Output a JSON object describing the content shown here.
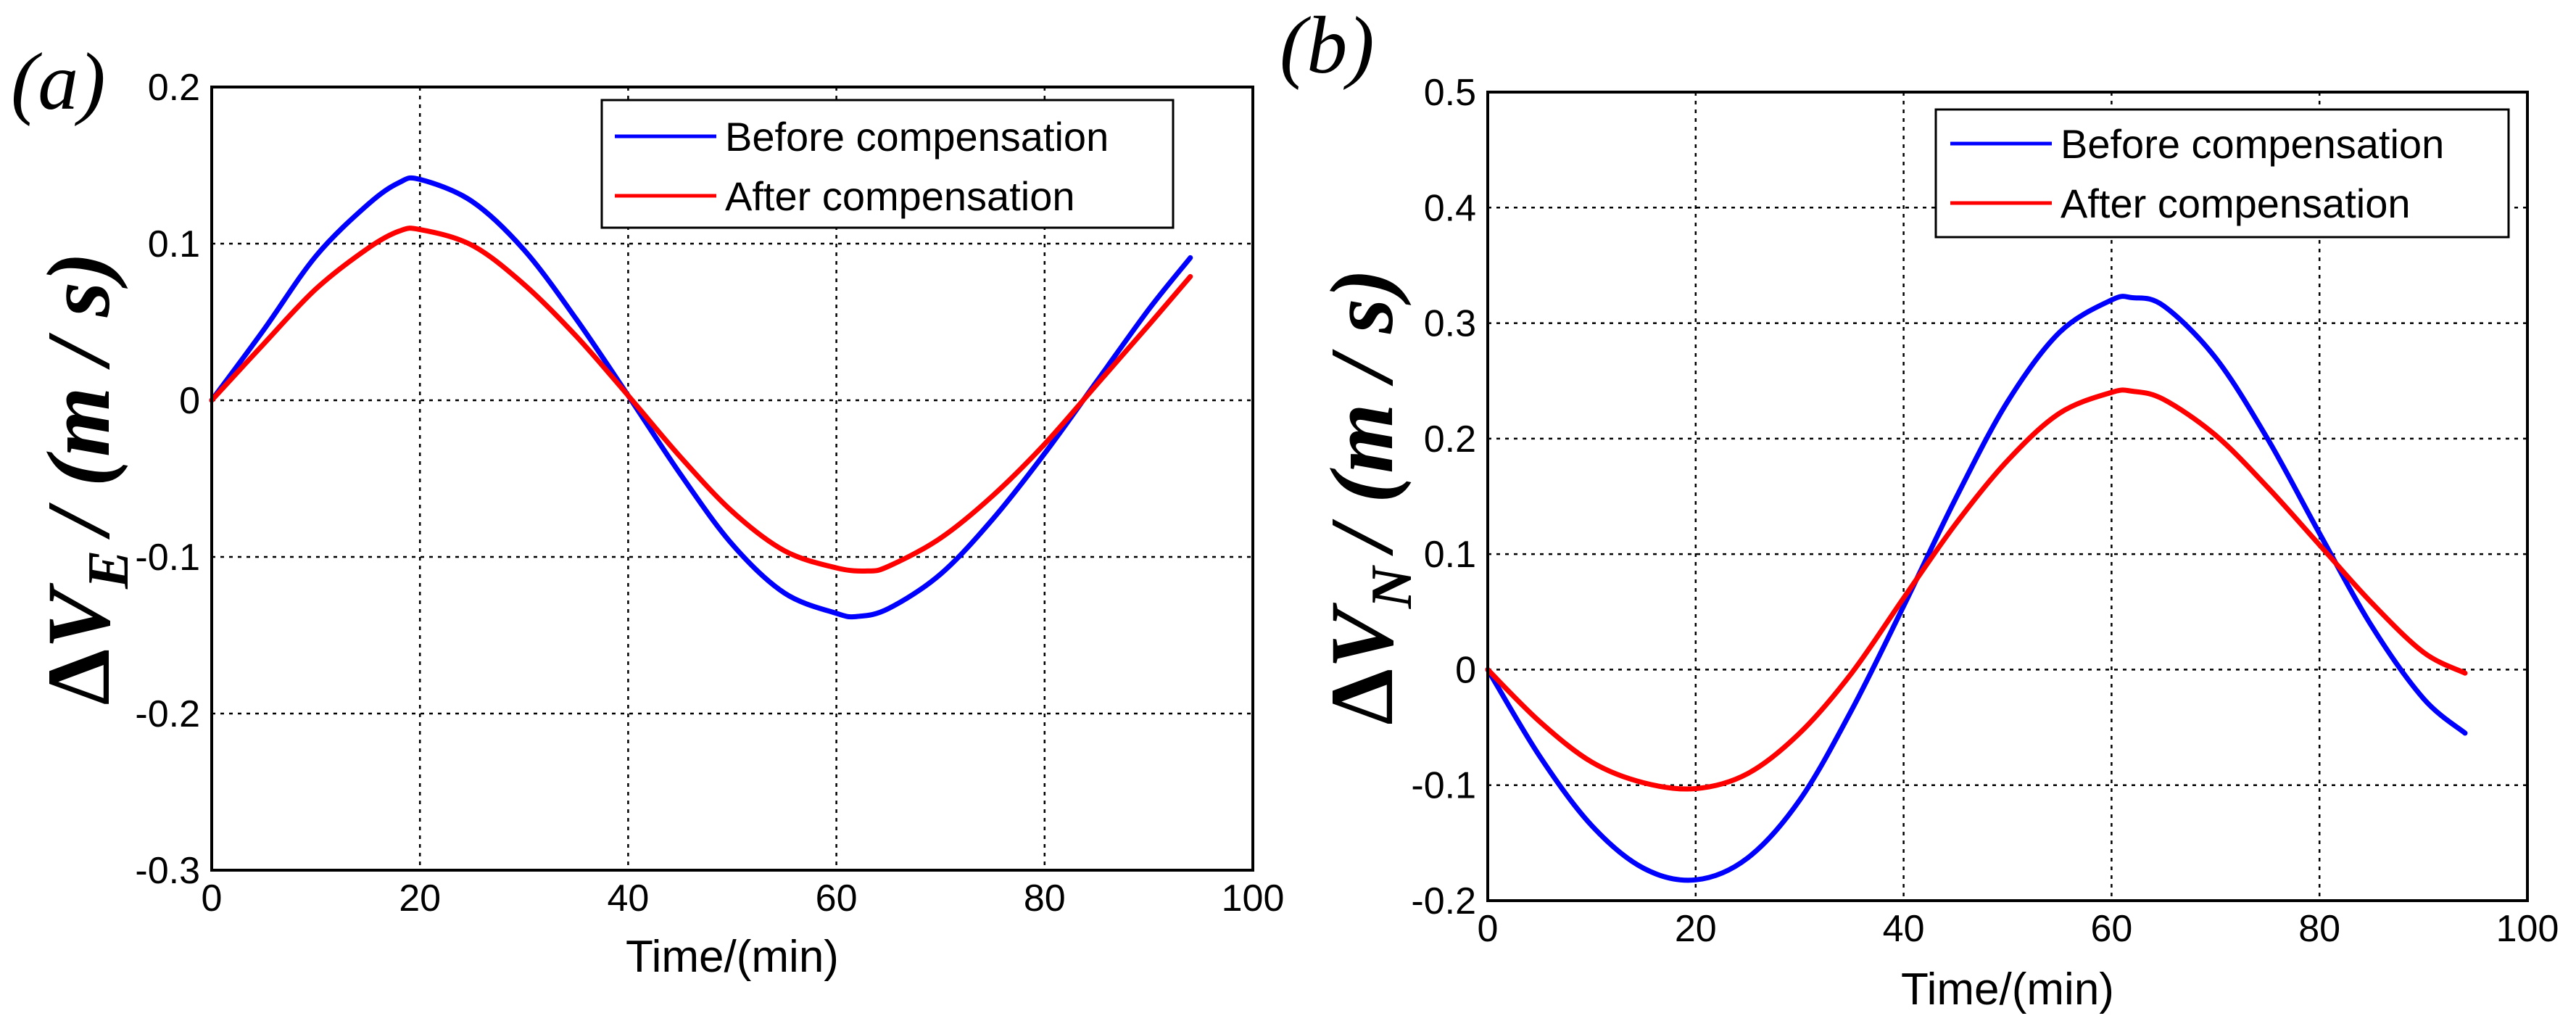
{
  "chart_data": [
    {
      "id": "a",
      "type": "line",
      "panel_label": "(a)",
      "xlabel": "Time/(min)",
      "ylabel": {
        "delta": "Δ",
        "var": "V",
        "sub": "E",
        "unit": "/ (m / s)"
      },
      "xlim": [
        0,
        100
      ],
      "ylim": [
        -0.3,
        0.2
      ],
      "xticks": [
        0,
        20,
        40,
        60,
        80,
        100
      ],
      "yticks": [
        -0.3,
        -0.2,
        -0.1,
        0,
        0.1,
        0.2
      ],
      "xtick_labels": [
        "0",
        "20",
        "40",
        "60",
        "80",
        "100"
      ],
      "ytick_labels": [
        "-0.3",
        "-0.2",
        "-0.1",
        "0",
        "0.1",
        "0.2"
      ],
      "grid": true,
      "legend_position": "top-right",
      "series": [
        {
          "name": "Before compensation",
          "color": "#0000ff",
          "x": [
            0,
            5,
            10,
            15,
            18,
            20,
            25,
            30,
            35,
            40,
            45,
            50,
            55,
            60,
            62,
            65,
            70,
            75,
            80,
            85,
            90,
            94
          ],
          "y": [
            0,
            0.045,
            0.092,
            0.125,
            0.139,
            0.141,
            0.127,
            0.096,
            0.052,
            0.003,
            -0.047,
            -0.092,
            -0.123,
            -0.136,
            -0.138,
            -0.133,
            -0.111,
            -0.076,
            -0.034,
            0.012,
            0.058,
            0.091
          ]
        },
        {
          "name": "After compensation",
          "color": "#ff0000",
          "x": [
            0,
            5,
            10,
            15,
            18,
            20,
            25,
            30,
            35,
            40,
            45,
            50,
            55,
            60,
            63,
            65,
            70,
            75,
            80,
            85,
            90,
            94
          ],
          "y": [
            0,
            0.036,
            0.071,
            0.097,
            0.108,
            0.109,
            0.099,
            0.074,
            0.041,
            0.003,
            -0.036,
            -0.071,
            -0.096,
            -0.107,
            -0.109,
            -0.106,
            -0.088,
            -0.061,
            -0.028,
            0.01,
            0.048,
            0.079
          ]
        }
      ]
    },
    {
      "id": "b",
      "type": "line",
      "panel_label": "(b)",
      "xlabel": "Time/(min)",
      "ylabel": {
        "delta": "Δ",
        "var": "V",
        "sub": "N",
        "unit": "/ (m / s)"
      },
      "xlim": [
        0,
        100
      ],
      "ylim": [
        -0.2,
        0.5
      ],
      "xticks": [
        0,
        20,
        40,
        60,
        80,
        100
      ],
      "yticks": [
        -0.2,
        -0.1,
        0,
        0.1,
        0.2,
        0.3,
        0.4,
        0.5
      ],
      "xtick_labels": [
        "0",
        "20",
        "40",
        "60",
        "80",
        "100"
      ],
      "ytick_labels": [
        "-0.2",
        "-0.1",
        "0",
        "0.1",
        "0.2",
        "0.3",
        "0.4",
        "0.5"
      ],
      "grid": true,
      "legend_position": "top-right",
      "series": [
        {
          "name": "Before compensation",
          "color": "#0000ff",
          "x": [
            0,
            5,
            10,
            15,
            20,
            25,
            30,
            35,
            40,
            45,
            50,
            55,
            60,
            62,
            65,
            70,
            75,
            80,
            85,
            90,
            94
          ],
          "y": [
            0,
            -0.075,
            -0.135,
            -0.172,
            -0.182,
            -0.163,
            -0.113,
            -0.035,
            0.055,
            0.148,
            0.232,
            0.292,
            0.32,
            0.322,
            0.315,
            0.27,
            0.2,
            0.118,
            0.038,
            -0.025,
            -0.055
          ]
        },
        {
          "name": "After compensation",
          "color": "#ff0000",
          "x": [
            0,
            5,
            10,
            15,
            20,
            25,
            30,
            35,
            40,
            45,
            50,
            55,
            60,
            62,
            65,
            70,
            75,
            80,
            85,
            90,
            94
          ],
          "y": [
            0,
            -0.045,
            -0.08,
            -0.098,
            -0.103,
            -0.09,
            -0.055,
            -0.003,
            0.062,
            0.126,
            0.181,
            0.222,
            0.24,
            0.241,
            0.234,
            0.203,
            0.158,
            0.108,
            0.058,
            0.015,
            -0.003
          ]
        }
      ]
    }
  ]
}
